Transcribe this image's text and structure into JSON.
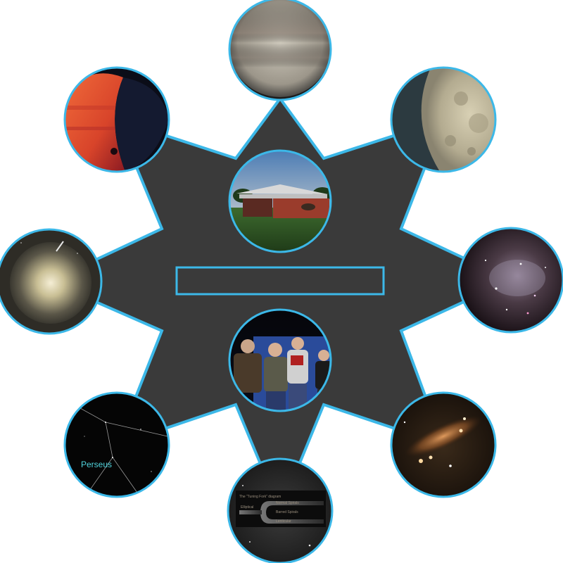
{
  "colors": {
    "background": "#ffffff",
    "star_fill": "#3a3a3a",
    "outline": "#3cb8e8"
  },
  "center_banner": {
    "label": ""
  },
  "photos": {
    "jupiter": {
      "label": ""
    },
    "moon": {
      "label": ""
    },
    "nebula": {
      "label": ""
    },
    "galaxy": {
      "label": ""
    },
    "tuning_fork": {
      "caption_1": "The “Tuning Fork” diagram",
      "items": [
        "Normal Spirals",
        "Barred Spirals",
        "Elliptical",
        "Lenticular"
      ]
    },
    "perseus": {
      "label": "Perseus"
    },
    "comet": {
      "label": ""
    },
    "mars": {
      "label": ""
    },
    "observatory": {
      "label": ""
    },
    "group": {
      "label": ""
    }
  }
}
